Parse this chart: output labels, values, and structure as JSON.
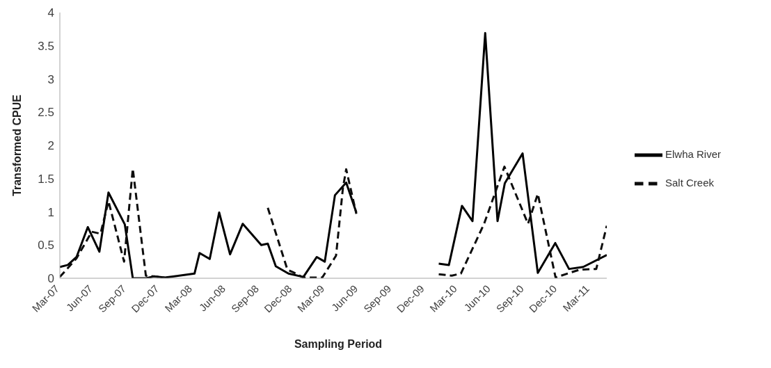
{
  "chart_data": {
    "type": "line",
    "xlabel": "Sampling Period",
    "ylabel": "Transformed CPUE",
    "xlim": [
      "2007-03-01",
      "2011-04-16"
    ],
    "xticks": [
      {
        "value": "2007-03-01",
        "label": "Mar-07"
      },
      {
        "value": "2007-06-01",
        "label": "Jun-07"
      },
      {
        "value": "2007-09-01",
        "label": "Sep-07"
      },
      {
        "value": "2007-12-01",
        "label": "Dec-07"
      },
      {
        "value": "2008-03-01",
        "label": "Mar-08"
      },
      {
        "value": "2008-06-01",
        "label": "Jun-08"
      },
      {
        "value": "2008-09-01",
        "label": "Sep-08"
      },
      {
        "value": "2008-12-01",
        "label": "Dec-08"
      },
      {
        "value": "2009-03-01",
        "label": "Mar-09"
      },
      {
        "value": "2009-06-01",
        "label": "Jun-09"
      },
      {
        "value": "2009-09-01",
        "label": "Sep-09"
      },
      {
        "value": "2009-12-01",
        "label": "Dec-09"
      },
      {
        "value": "2010-03-01",
        "label": "Mar-10"
      },
      {
        "value": "2010-06-01",
        "label": "Jun-10"
      },
      {
        "value": "2010-09-01",
        "label": "Sep-10"
      },
      {
        "value": "2010-12-01",
        "label": "Dec-10"
      },
      {
        "value": "2011-03-01",
        "label": "Mar-11"
      }
    ],
    "ylim": [
      0,
      4
    ],
    "yticks": [
      0,
      0.5,
      1,
      1.5,
      2,
      2.5,
      3,
      3.5,
      4
    ],
    "grid": false,
    "legend": "right",
    "series": [
      {
        "name": "Elwha River",
        "color": "#000000",
        "line_style": "solid",
        "x": [
          "2007-03-01",
          "2007-03-23",
          "2007-04-16",
          "2007-05-17",
          "2007-06-18",
          "2007-07-13",
          "2007-08-27",
          "2007-09-18",
          "2007-10-25",
          "2007-11-16",
          "2007-12-15",
          "2008-03-06",
          "2008-03-20",
          "2008-04-17",
          "2008-05-13",
          "2008-06-12",
          "2008-07-17",
          "2008-09-06",
          "2008-09-24",
          "2008-10-16",
          "2008-11-20",
          "2008-12-31",
          "2009-02-06",
          "2009-02-28",
          "2009-03-28",
          "2009-04-28",
          "2009-05-26",
          "2009-09-01",
          "2010-01-08",
          "2010-02-05",
          "2010-03-13",
          "2010-04-11",
          "2010-05-16",
          "2010-06-19",
          "2010-07-09",
          "2010-08-27",
          "2010-10-08",
          "2010-11-25",
          "2011-01-02",
          "2011-02-10",
          "2011-04-16"
        ],
        "values": [
          0.17,
          0.2,
          0.32,
          0.77,
          0.4,
          1.29,
          0.81,
          0,
          0,
          0.03,
          0.01,
          0.07,
          0.38,
          0.29,
          0.99,
          0.36,
          0.82,
          0.5,
          0.52,
          0.18,
          0.07,
          0.02,
          0.32,
          0.25,
          1.25,
          1.44,
          0.99,
          null,
          0.22,
          0.2,
          1.09,
          0.86,
          3.69,
          0.86,
          1.43,
          1.88,
          0.08,
          0.53,
          0.14,
          0.17,
          0.35
        ]
      },
      {
        "name": "Salt Creek",
        "color": "#0d0d0d",
        "line_style": "dashed",
        "x": [
          "2007-03-01",
          "2007-04-16",
          "2007-05-28",
          "2007-06-21",
          "2007-07-13",
          "2007-08-25",
          "2007-09-18",
          "2007-10-24",
          "2007-12-15",
          "2008-05-01",
          "2008-09-24",
          "2008-11-17",
          "2008-12-03",
          "2008-12-31",
          "2009-02-21",
          "2009-03-31",
          "2009-04-19",
          "2009-04-28",
          "2009-05-26",
          "2009-09-01",
          "2010-01-08",
          "2010-02-13",
          "2010-03-10",
          "2010-05-13",
          "2010-07-08",
          "2010-09-11",
          "2010-10-08",
          "2010-11-26",
          "2010-12-28",
          "2011-02-01",
          "2011-03-18",
          "2011-04-16"
        ],
        "values": [
          0.02,
          0.3,
          0.7,
          0.67,
          1.16,
          0.25,
          1.65,
          0.04,
          0.01,
          null,
          1.06,
          0.13,
          0.09,
          0.01,
          0.01,
          0.34,
          1.36,
          1.64,
          0.97,
          null,
          0.06,
          0.04,
          0.07,
          0.82,
          1.68,
          0.82,
          1.27,
          0.01,
          0.07,
          0.13,
          0.14,
          0.79
        ]
      }
    ]
  }
}
